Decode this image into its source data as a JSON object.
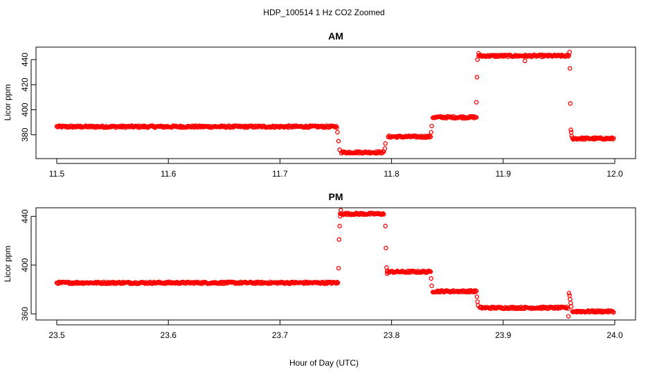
{
  "figure": {
    "title": "HDP_100514  1 Hz CO2 Zoomed",
    "xlabel": "Hour of Day (UTC)"
  },
  "chart_data": [
    {
      "type": "scatter",
      "title": "AM",
      "xlabel": "Hour of Day (UTC)",
      "ylabel": "Licor ppm",
      "xlim": [
        11.5,
        12.0
      ],
      "ylim": [
        361,
        450
      ],
      "xticks": [
        11.5,
        11.6,
        11.7,
        11.8,
        11.9,
        12.0
      ],
      "xtick_labels": [
        "11.5",
        "11.6",
        "11.7",
        "11.8",
        "11.9",
        "12.0"
      ],
      "yticks": [
        380,
        400,
        420,
        440
      ],
      "ytick_labels": [
        "380",
        "400",
        "420",
        "440"
      ],
      "grid": false,
      "legend": "none",
      "marker": "open-circle",
      "color": "#ff0000",
      "segments": [
        {
          "x_start": 11.5,
          "x_end": 11.751,
          "y": 386.5
        },
        {
          "x_start": 11.755,
          "x_end": 11.793,
          "y": 366
        },
        {
          "x_start": 11.797,
          "x_end": 11.835,
          "y": 378.5
        },
        {
          "x_start": 11.837,
          "x_end": 11.876,
          "y": 394
        },
        {
          "x_start": 11.878,
          "x_end": 11.959,
          "y": 443
        },
        {
          "x_start": 11.962,
          "x_end": 11.999,
          "y": 377
        }
      ],
      "transition_points": [
        {
          "x": 11.7515,
          "y": 382
        },
        {
          "x": 11.7525,
          "y": 375
        },
        {
          "x": 11.7535,
          "y": 368
        },
        {
          "x": 11.794,
          "y": 369
        },
        {
          "x": 11.7945,
          "y": 373
        },
        {
          "x": 11.8355,
          "y": 382
        },
        {
          "x": 11.836,
          "y": 387
        },
        {
          "x": 11.876,
          "y": 406
        },
        {
          "x": 11.8765,
          "y": 426
        },
        {
          "x": 11.877,
          "y": 440
        },
        {
          "x": 11.878,
          "y": 445
        },
        {
          "x": 11.9195,
          "y": 439
        },
        {
          "x": 11.9595,
          "y": 446
        },
        {
          "x": 11.9598,
          "y": 433
        },
        {
          "x": 11.9602,
          "y": 405
        },
        {
          "x": 11.9606,
          "y": 384
        },
        {
          "x": 11.961,
          "y": 382
        },
        {
          "x": 11.9614,
          "y": 379
        }
      ]
    },
    {
      "type": "scatter",
      "title": "PM",
      "xlabel": "Hour of Day (UTC)",
      "ylabel": "Licor ppm",
      "xlim": [
        23.5,
        24.0
      ],
      "ylim": [
        355,
        447
      ],
      "xticks": [
        23.5,
        23.6,
        23.7,
        23.8,
        23.9,
        24.0
      ],
      "xtick_labels": [
        "23.5",
        "23.6",
        "23.7",
        "23.8",
        "23.9",
        "24.0"
      ],
      "yticks": [
        360,
        400,
        440
      ],
      "ytick_labels": [
        "360",
        "400",
        "440"
      ],
      "grid": false,
      "legend": "none",
      "marker": "open-circle",
      "color": "#ff0000",
      "segments": [
        {
          "x_start": 23.5,
          "x_end": 23.752,
          "y": 385.5
        },
        {
          "x_start": 23.754,
          "x_end": 23.793,
          "y": 442
        },
        {
          "x_start": 23.796,
          "x_end": 23.835,
          "y": 394.5
        },
        {
          "x_start": 23.837,
          "x_end": 23.876,
          "y": 378.5
        },
        {
          "x_start": 23.879,
          "x_end": 23.958,
          "y": 365
        },
        {
          "x_start": 23.962,
          "x_end": 23.999,
          "y": 362
        }
      ],
      "transition_points": [
        {
          "x": 23.7525,
          "y": 397.5
        },
        {
          "x": 23.753,
          "y": 421
        },
        {
          "x": 23.7535,
          "y": 432
        },
        {
          "x": 23.754,
          "y": 440
        },
        {
          "x": 23.7545,
          "y": 445
        },
        {
          "x": 23.7945,
          "y": 432
        },
        {
          "x": 23.795,
          "y": 414
        },
        {
          "x": 23.7955,
          "y": 398
        },
        {
          "x": 23.796,
          "y": 393
        },
        {
          "x": 23.8355,
          "y": 389
        },
        {
          "x": 23.836,
          "y": 383
        },
        {
          "x": 23.8765,
          "y": 374
        },
        {
          "x": 23.877,
          "y": 370
        },
        {
          "x": 23.8775,
          "y": 367
        },
        {
          "x": 23.9585,
          "y": 358
        },
        {
          "x": 23.959,
          "y": 377
        },
        {
          "x": 23.9595,
          "y": 375
        },
        {
          "x": 23.96,
          "y": 372
        },
        {
          "x": 23.9605,
          "y": 369
        },
        {
          "x": 23.961,
          "y": 366
        }
      ]
    }
  ]
}
